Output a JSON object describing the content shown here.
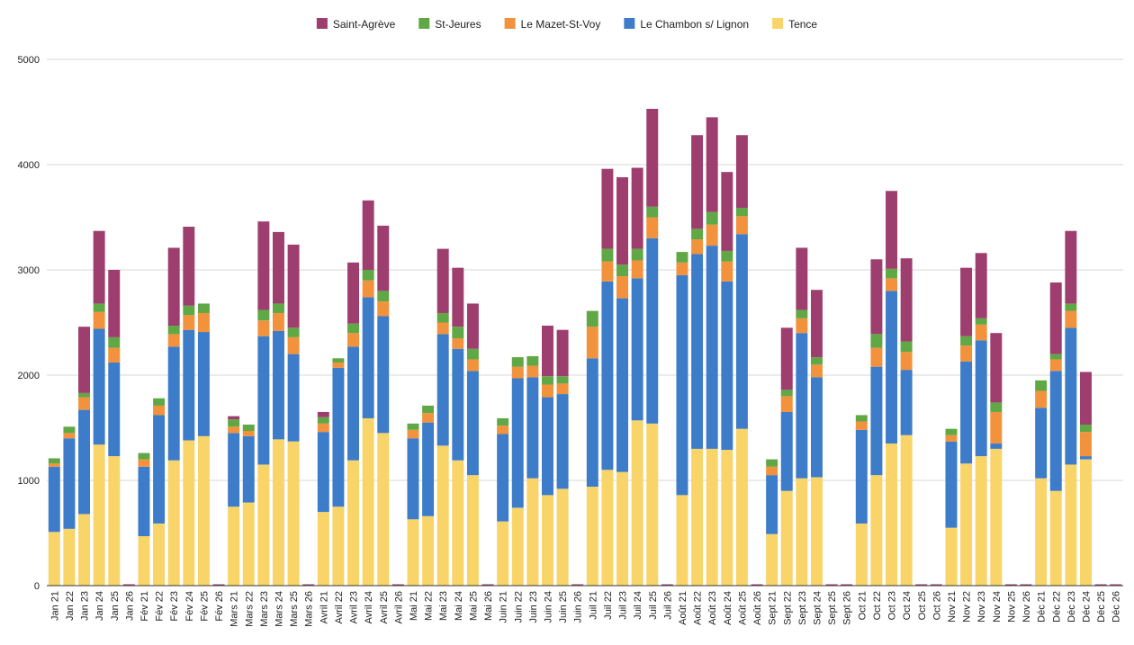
{
  "chart_data": {
    "type": "bar",
    "stacked": true,
    "title": "",
    "xlabel": "",
    "ylabel": "",
    "ylim": [
      0,
      5000
    ],
    "yticks": [
      0,
      1000,
      2000,
      3000,
      4000,
      5000
    ],
    "grid": true,
    "legend_position": "top-center",
    "categories": [
      "Jan 21",
      "Jan 22",
      "Jan 23",
      "Jan 24",
      "Jan 25",
      "Jan 26",
      "Fév 21",
      "Fév 22",
      "Fév 23",
      "Fév 24",
      "Fév 25",
      "Fév 26",
      "Mars 21",
      "Mars 22",
      "Mars 23",
      "Mars 24",
      "Mars 25",
      "Mars 26",
      "Avril 21",
      "Avril 22",
      "Avril 23",
      "Avril 24",
      "Avril 25",
      "Avril 26",
      "Mai 21",
      "Mai 22",
      "Mai 23",
      "Mai 24",
      "Mai 25",
      "Mai 26",
      "Juin 21",
      "Juin 22",
      "Juin 23",
      "Juin 24",
      "Juin 25",
      "Juin 26",
      "Juil 21",
      "Juil 22",
      "Juil 23",
      "Juil 24",
      "Juil 25",
      "Juil 26",
      "Août 21",
      "Août 22",
      "Août 23",
      "Août 24",
      "Août 25",
      "Août 26",
      "Sept 21",
      "Sept 22",
      "Sept 23",
      "Sept 24",
      "Sept 25",
      "Sept 26",
      "Oct 21",
      "Oct 22",
      "Oct 23",
      "Oct 24",
      "Oct 25",
      "Oct 26",
      "Nov 21",
      "Nov 22",
      "Nov 23",
      "Nov 24",
      "Nov 25",
      "Nov 26",
      "Déc 21",
      "Déc 22",
      "Déc 23",
      "Déc 24",
      "Déc 25",
      "Déc 26"
    ],
    "series": [
      {
        "name": "Tence",
        "color": "#F9D468",
        "values": [
          510,
          540,
          680,
          1340,
          1230,
          0,
          470,
          590,
          1190,
          1380,
          1420,
          0,
          750,
          790,
          1150,
          1390,
          1370,
          0,
          700,
          750,
          1190,
          1590,
          1450,
          0,
          630,
          660,
          1330,
          1190,
          1050,
          0,
          610,
          740,
          1020,
          860,
          920,
          0,
          940,
          1100,
          1080,
          1570,
          1540,
          0,
          860,
          1300,
          1300,
          1290,
          1490,
          0,
          490,
          900,
          1020,
          1030,
          0,
          0,
          590,
          1050,
          1350,
          1430,
          0,
          0,
          550,
          1160,
          1230,
          1300,
          0,
          0,
          1020,
          900,
          1150,
          1200,
          0,
          0
        ]
      },
      {
        "name": "Le Chambon s/ Lignon",
        "color": "#3D7CC9",
        "values": [
          620,
          860,
          990,
          1100,
          890,
          0,
          660,
          1030,
          1080,
          1050,
          990,
          0,
          700,
          630,
          1220,
          1030,
          830,
          0,
          760,
          1320,
          1080,
          1150,
          1110,
          0,
          770,
          890,
          1060,
          1060,
          990,
          0,
          830,
          1230,
          960,
          930,
          900,
          0,
          1220,
          1790,
          1650,
          1350,
          1760,
          0,
          2090,
          1850,
          1930,
          1600,
          1850,
          0,
          560,
          750,
          1380,
          950,
          0,
          0,
          890,
          1030,
          1450,
          620,
          0,
          0,
          820,
          970,
          1100,
          50,
          0,
          0,
          670,
          1140,
          1300,
          30,
          0,
          0
        ]
      },
      {
        "name": "Le Mazet-St-Voy",
        "color": "#F2923C",
        "values": [
          30,
          50,
          120,
          160,
          140,
          0,
          70,
          90,
          120,
          140,
          180,
          0,
          60,
          50,
          150,
          170,
          160,
          0,
          80,
          50,
          130,
          160,
          140,
          0,
          80,
          90,
          110,
          100,
          110,
          0,
          80,
          110,
          110,
          120,
          100,
          0,
          300,
          190,
          210,
          170,
          200,
          0,
          120,
          140,
          200,
          190,
          170,
          0,
          80,
          150,
          140,
          120,
          0,
          0,
          80,
          180,
          120,
          170,
          0,
          0,
          60,
          150,
          150,
          300,
          0,
          0,
          160,
          110,
          160,
          230,
          0,
          0
        ]
      },
      {
        "name": "St-Jeures",
        "color": "#5FA845",
        "values": [
          50,
          60,
          40,
          80,
          100,
          0,
          60,
          70,
          80,
          90,
          90,
          0,
          70,
          60,
          100,
          90,
          90,
          0,
          60,
          40,
          90,
          100,
          100,
          0,
          60,
          70,
          90,
          110,
          100,
          0,
          70,
          90,
          90,
          80,
          70,
          0,
          150,
          120,
          110,
          110,
          100,
          0,
          100,
          100,
          120,
          100,
          80,
          0,
          70,
          60,
          80,
          70,
          0,
          0,
          60,
          130,
          90,
          100,
          0,
          0,
          60,
          90,
          60,
          90,
          0,
          0,
          100,
          50,
          70,
          70,
          0,
          0
        ]
      },
      {
        "name": "Saint-Agrève",
        "color": "#9E3E6E",
        "values": [
          0,
          0,
          630,
          690,
          640,
          0,
          0,
          0,
          740,
          750,
          0,
          0,
          30,
          0,
          840,
          680,
          790,
          0,
          50,
          0,
          580,
          660,
          620,
          0,
          0,
          0,
          610,
          560,
          430,
          0,
          0,
          0,
          0,
          480,
          440,
          0,
          0,
          760,
          830,
          770,
          930,
          0,
          0,
          890,
          900,
          750,
          690,
          0,
          0,
          590,
          590,
          640,
          0,
          0,
          0,
          710,
          740,
          790,
          0,
          0,
          0,
          650,
          620,
          660,
          0,
          0,
          0,
          680,
          690,
          500,
          0,
          0
        ]
      }
    ],
    "legend_order": [
      "Saint-Agrève",
      "St-Jeures",
      "Le Mazet-St-Voy",
      "Le Chambon s/ Lignon",
      "Tence"
    ]
  }
}
